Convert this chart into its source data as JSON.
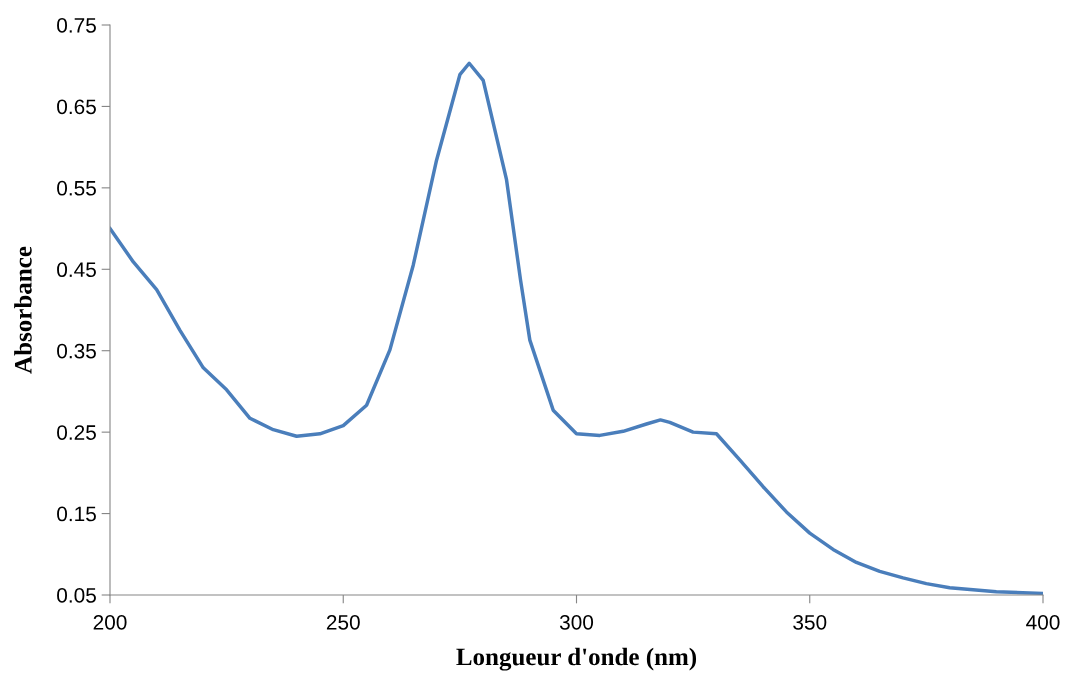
{
  "chart_data": {
    "type": "line",
    "xlabel": "Longueur d'onde (nm)",
    "ylabel": "Absorbance",
    "x": [
      200,
      205,
      210,
      215,
      220,
      225,
      230,
      235,
      240,
      245,
      250,
      255,
      260,
      265,
      270,
      275,
      277,
      280,
      285,
      288,
      290,
      295,
      300,
      305,
      310,
      315,
      318,
      320,
      325,
      330,
      335,
      340,
      345,
      350,
      355,
      360,
      365,
      370,
      375,
      380,
      390,
      400
    ],
    "series": [
      {
        "color": "#4a7ebb",
        "values": [
          0.5,
          0.459,
          0.425,
          0.375,
          0.329,
          0.302,
          0.267,
          0.253,
          0.245,
          0.248,
          0.258,
          0.283,
          0.351,
          0.455,
          0.584,
          0.689,
          0.703,
          0.682,
          0.56,
          0.437,
          0.363,
          0.277,
          0.248,
          0.246,
          0.251,
          0.26,
          0.265,
          0.262,
          0.25,
          0.248,
          0.216,
          0.183,
          0.152,
          0.126,
          0.106,
          0.09,
          0.079,
          0.071,
          0.064,
          0.059,
          0.054,
          0.052
        ]
      }
    ],
    "xlim": [
      200,
      400
    ],
    "xticks": [
      200,
      250,
      300,
      350,
      400
    ],
    "ylim": [
      0.05,
      0.75
    ],
    "yticks": [
      0.05,
      0.15,
      0.25,
      0.35,
      0.45,
      0.55,
      0.65,
      0.75
    ],
    "grid": false,
    "legend": false,
    "marker": "none",
    "line_style": "solid"
  }
}
